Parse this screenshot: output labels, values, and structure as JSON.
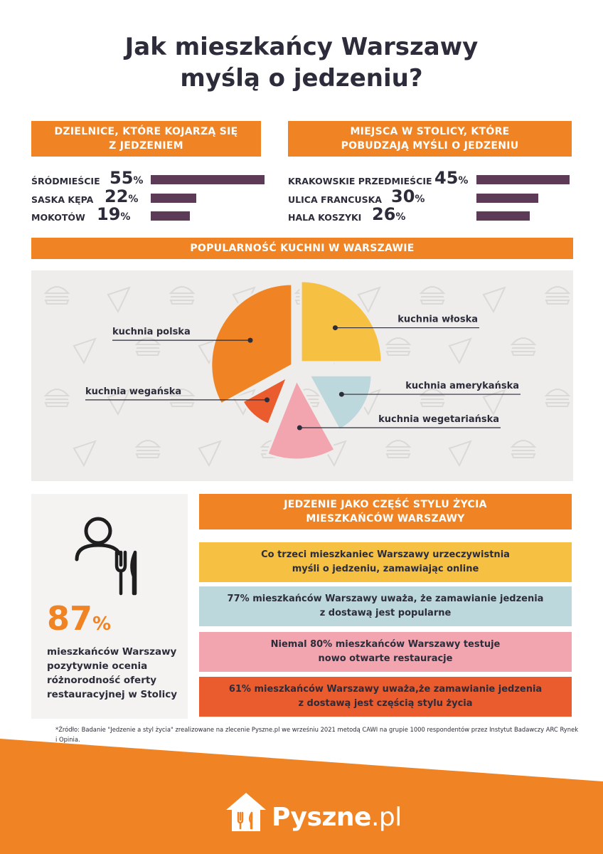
{
  "title": {
    "line1": "Jak mieszkańcy Warszawy",
    "line2": "myślą o jedzeniu?"
  },
  "districts": {
    "heading_line1": "DZIELNICE, KTÓRE KOJARZĄ SIĘ",
    "heading_line2": "Z JEDZENIEM",
    "items": [
      {
        "label": "ŚRÓDMIEŚCIE",
        "value": 55,
        "suffix": "%"
      },
      {
        "label": "SASKA KĘPA",
        "value": 22,
        "suffix": "%"
      },
      {
        "label": "MOKOTÓW",
        "value": 19,
        "suffix": "%"
      }
    ]
  },
  "places": {
    "heading_line1": "MIEJSCA W STOLICY, KTÓRE",
    "heading_line2": "POBUDZAJĄ MYŚLI O JEDZENIU",
    "items": [
      {
        "label": "KRAKOWSKIE PRZEDMIEŚCIE",
        "value": 45,
        "suffix": "%"
      },
      {
        "label": "ULICA FRANCUSKA",
        "value": 30,
        "suffix": "%"
      },
      {
        "label": "HALA KOSZYKI",
        "value": 26,
        "suffix": "%"
      }
    ]
  },
  "cuisine": {
    "heading": "POPULARNOŚĆ KUCHNI W WARSZAWIE"
  },
  "chart_data": [
    {
      "type": "bar",
      "categories": [
        "ŚRÓDMIEŚCIE",
        "SASKA KĘPA",
        "MOKOTÓW"
      ],
      "values": [
        55,
        22,
        19
      ],
      "title": "DZIELNICE, KTÓRE KOJARZĄ SIĘ Z JEDZENIEM"
    },
    {
      "type": "bar",
      "categories": [
        "KRAKOWSKIE PRZEDMIEŚCIE",
        "ULICA FRANCUSKA",
        "HALA KOSZYKI"
      ],
      "values": [
        45,
        30,
        26
      ],
      "title": "MIEJSCA W STOLICY, KTÓRE POBUDZAJĄ MYŚLI O JEDZENIU"
    },
    {
      "type": "pie",
      "title": "POPULARNOŚĆ KUCHNI W WARSZAWIE",
      "slices": [
        {
          "label": "kuchnia włoska",
          "value": 25,
          "color": "#f6c143"
        },
        {
          "label": "kuchnia amerykańska",
          "value": 17,
          "color": "#bcd8dd"
        },
        {
          "label": "kuchnia wegetariańska",
          "value": 14,
          "color": "#f2a5ae"
        },
        {
          "label": "kuchnia wegańska",
          "value": 11,
          "color": "#ea5b2e"
        },
        {
          "label": "kuchnia polska",
          "value": 33,
          "color": "#f08424"
        }
      ]
    }
  ],
  "highlight": {
    "value": "87",
    "suffix": "%",
    "description": "mieszkańców Warszawy pozytywnie ocenia różnorodność oferty restauracyjnej w Stolicy"
  },
  "lifestyle": {
    "heading_line1": "JEDZENIE JAKO CZĘŚĆ STYLU ŻYCIA",
    "heading_line2": "MIESZKAŃCÓW WARSZAWY",
    "facts": [
      {
        "line1": "Co trzeci mieszkaniec Warszawy urzeczywistnia",
        "line2": "myśli o jedzeniu, zamawiając online",
        "color": "#f6c143"
      },
      {
        "line1": "77% mieszkańców Warszawy uważa, że zamawianie jedzenia",
        "line2": "z dostawą jest popularne",
        "color": "#bcd8dd"
      },
      {
        "line1": "Niemal 80% mieszkańców Warszawy testuje",
        "line2": "nowo otwarte restauracje",
        "color": "#f2a5ae"
      },
      {
        "line1": "61% mieszkańców Warszawy uważa,że zamawianie jedzenia",
        "line2": "z dostawą jest częścią stylu życia",
        "color": "#ea5b2e"
      }
    ]
  },
  "source": "*Źródło: Badanie \"Jedzenie a styl życia\" zrealizowane na zlecenie Pyszne.pl we wrześniu 2021 metodą CAWI na grupie 1000 respondentów przez Instytut Badawczy ARC Rynek i Opinia.",
  "logo": {
    "brand": "Pyszne",
    "tld": ".pl"
  },
  "colors": {
    "accent": "#f08424",
    "bar": "#5d3b57",
    "text": "#2c2c3a"
  }
}
